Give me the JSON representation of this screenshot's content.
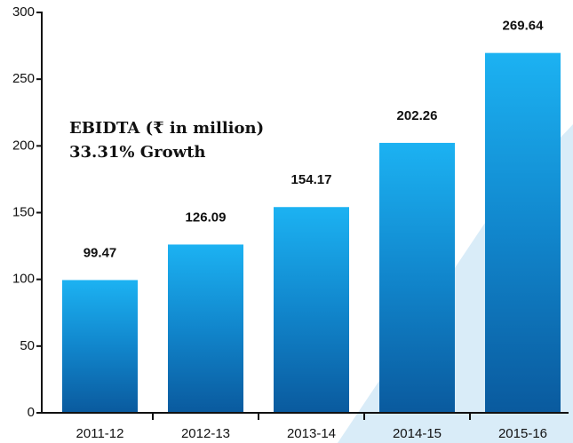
{
  "chart_data": {
    "type": "bar",
    "title": "EBIDTA (₹ in million)",
    "subtitle": "33.31% Growth",
    "categories": [
      "2011-12",
      "2012-13",
      "2013-14",
      "2014-15",
      "2015-16"
    ],
    "values": [
      99.47,
      126.09,
      154.17,
      202.26,
      269.64
    ],
    "ylim": [
      0,
      300
    ],
    "yticks": [
      0,
      50,
      100,
      150,
      200,
      250,
      300
    ],
    "grid": false
  }
}
